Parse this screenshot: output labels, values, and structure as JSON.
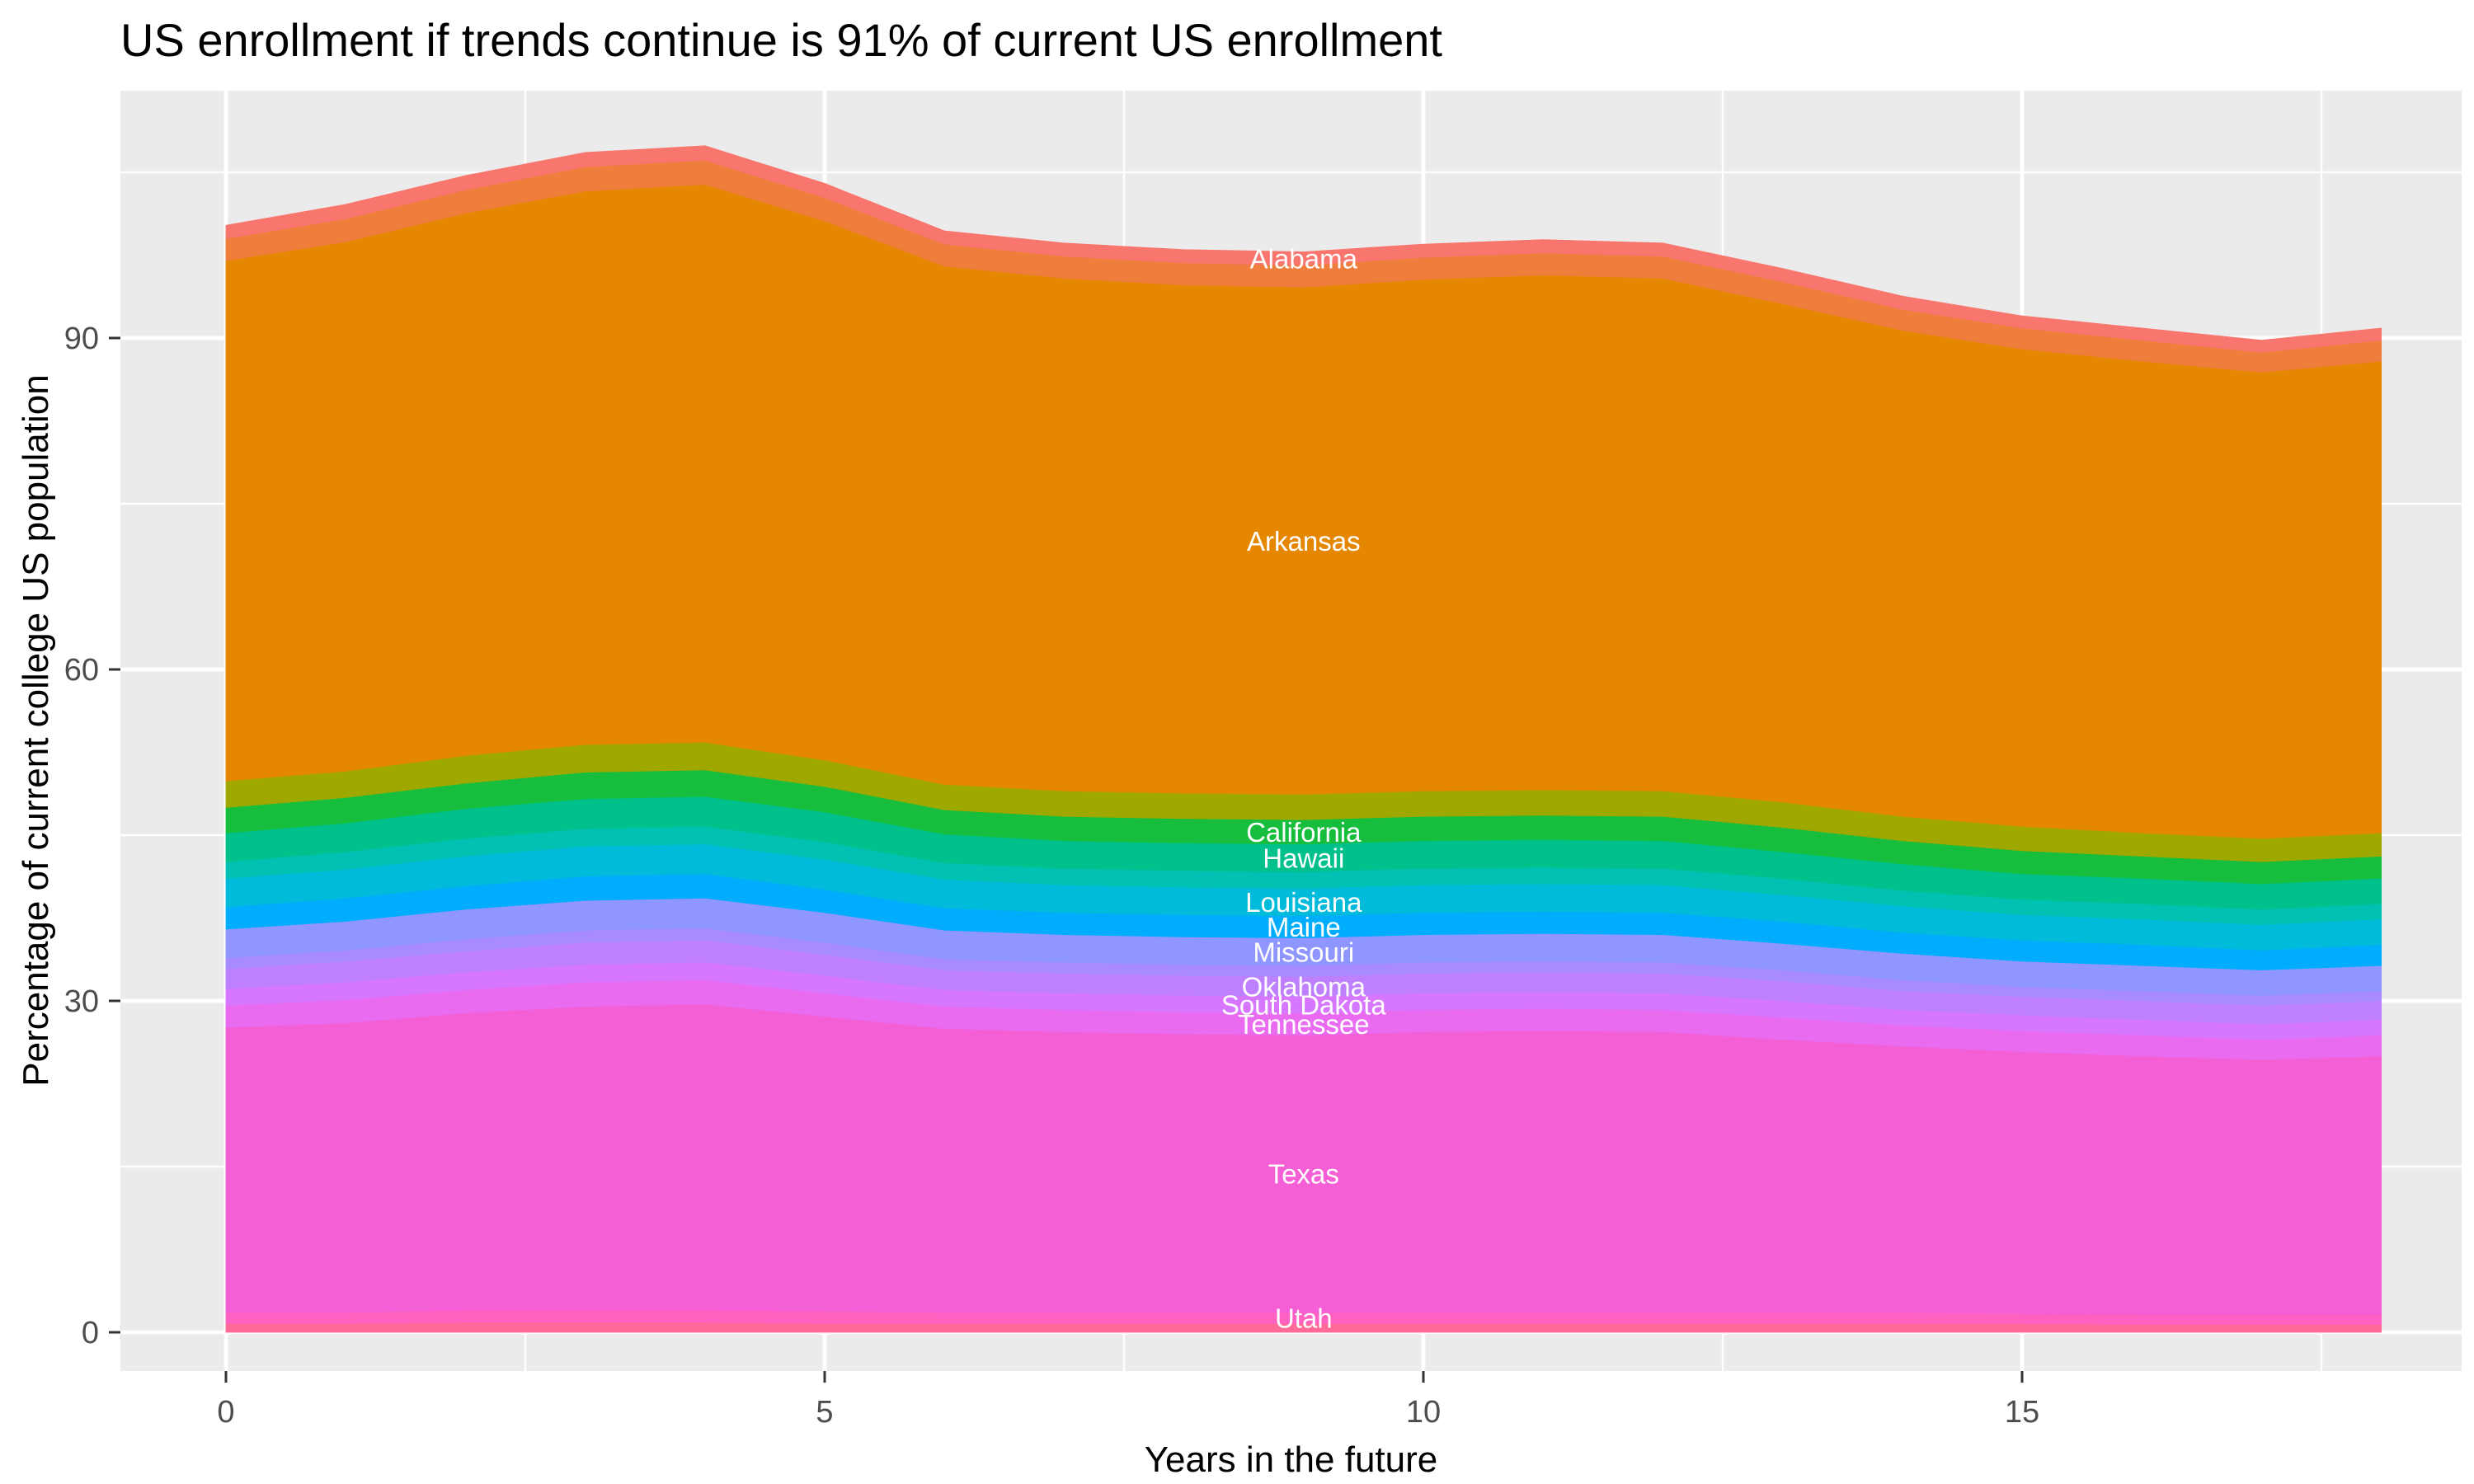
{
  "chart_data": {
    "type": "area",
    "stacked": true,
    "title": "US enrollment if trends continue is 91% of current US enrollment",
    "xlabel": "Years in the future",
    "ylabel": "Percentage of current college US population",
    "x": [
      0,
      1,
      2,
      3,
      4,
      5,
      6,
      7,
      8,
      9,
      10,
      11,
      12,
      13,
      14,
      15,
      16,
      17,
      18
    ],
    "x_ticks": [
      0,
      5,
      10,
      15
    ],
    "x_minor_ticks": [
      2.5,
      7.5,
      12.5,
      17.5
    ],
    "y_ticks": [
      0,
      30,
      60,
      90
    ],
    "y_minor_ticks": [
      15,
      45,
      75,
      105
    ],
    "xlim": [
      -0.9,
      18.7
    ],
    "ylim": [
      -3.5,
      112.4
    ],
    "grid": true,
    "legend": "none",
    "panel_background": "#EBEBEB",
    "grid_color": "#FFFFFF",
    "tick_label_color": "#4D4D4D",
    "area_label_color": "#FFFFFF",
    "label_x": 9,
    "series_order": "bottom-to-top",
    "stack_total_pct": [
      100.3,
      102.0,
      104.5,
      106.8,
      107.6,
      103.9,
      100.0,
      98.8,
      98.0,
      97.8,
      98.6,
      99.3,
      98.8,
      96.0,
      93.8,
      92.0,
      90.9,
      89.9,
      90.9
    ],
    "series": [
      {
        "name": "(other states, bottom band)",
        "labeled": false,
        "color": "#FF6A98",
        "values": [
          0.8,
          0.8,
          0.9,
          0.9,
          0.9,
          0.8,
          0.8,
          0.8,
          0.8,
          0.8,
          0.8,
          0.8,
          0.8,
          0.8,
          0.8,
          0.8,
          0.7,
          0.7,
          0.7
        ]
      },
      {
        "name": "Utah",
        "labeled": true,
        "color": "#FF61C0",
        "values": [
          1.0,
          1.0,
          1.1,
          1.1,
          1.1,
          1.1,
          1.0,
          1.0,
          1.0,
          1.0,
          1.0,
          1.0,
          1.0,
          1.0,
          1.0,
          0.9,
          0.9,
          0.9,
          0.9
        ]
      },
      {
        "name": "Texas",
        "labeled": true,
        "color": "#F45FD5",
        "values": [
          25.8,
          26.2,
          26.9,
          27.5,
          27.7,
          26.7,
          25.7,
          25.4,
          25.2,
          25.1,
          25.4,
          25.5,
          25.4,
          24.7,
          24.1,
          23.7,
          23.4,
          23.1,
          23.4
        ]
      },
      {
        "name": "Tennessee",
        "labeled": true,
        "color": "#E96BF0",
        "values": [
          2.0,
          2.1,
          2.1,
          2.2,
          2.2,
          2.1,
          2.0,
          2.0,
          2.0,
          2.0,
          2.0,
          2.0,
          2.0,
          2.0,
          1.9,
          1.9,
          1.9,
          1.8,
          1.9
        ]
      },
      {
        "name": "South Dakota",
        "labeled": true,
        "color": "#D776FF",
        "values": [
          1.5,
          1.6,
          1.6,
          1.6,
          1.6,
          1.6,
          1.5,
          1.5,
          1.5,
          1.5,
          1.5,
          1.5,
          1.5,
          1.5,
          1.4,
          1.4,
          1.4,
          1.4,
          1.4
        ]
      },
      {
        "name": "Oklahoma",
        "labeled": true,
        "color": "#BF80FF",
        "values": [
          1.8,
          1.9,
          1.9,
          2.0,
          2.0,
          1.9,
          1.8,
          1.8,
          1.8,
          1.8,
          1.8,
          1.8,
          1.8,
          1.8,
          1.7,
          1.7,
          1.7,
          1.7,
          1.7
        ]
      },
      {
        "name": "(other states, purple band)",
        "labeled": false,
        "color": "#A88CFF",
        "values": [
          1.0,
          1.0,
          1.1,
          1.1,
          1.1,
          1.1,
          1.0,
          1.0,
          1.0,
          1.0,
          1.0,
          1.0,
          1.0,
          1.0,
          1.0,
          0.9,
          0.9,
          0.9,
          0.9
        ]
      },
      {
        "name": "Missouri",
        "labeled": true,
        "color": "#8F96FF",
        "values": [
          2.6,
          2.6,
          2.7,
          2.7,
          2.7,
          2.7,
          2.6,
          2.5,
          2.5,
          2.5,
          2.5,
          2.5,
          2.5,
          2.4,
          2.4,
          2.3,
          2.3,
          2.3,
          2.3
        ]
      },
      {
        "name": "Maine",
        "labeled": true,
        "color": "#00ACFC",
        "values": [
          2.0,
          2.1,
          2.1,
          2.2,
          2.2,
          2.1,
          2.0,
          2.0,
          2.0,
          2.0,
          2.0,
          2.0,
          2.0,
          2.0,
          1.9,
          1.9,
          1.9,
          1.8,
          1.9
        ]
      },
      {
        "name": "Louisiana",
        "labeled": true,
        "color": "#00BBDA",
        "values": [
          2.6,
          2.6,
          2.7,
          2.7,
          2.7,
          2.7,
          2.6,
          2.5,
          2.5,
          2.5,
          2.5,
          2.5,
          2.5,
          2.4,
          2.4,
          2.3,
          2.3,
          2.3,
          2.3
        ]
      },
      {
        "name": "(other states, teal band)",
        "labeled": false,
        "color": "#00C1B2",
        "values": [
          1.5,
          1.6,
          1.6,
          1.6,
          1.6,
          1.6,
          1.5,
          1.5,
          1.5,
          1.5,
          1.5,
          1.5,
          1.5,
          1.5,
          1.4,
          1.4,
          1.4,
          1.4,
          1.4
        ]
      },
      {
        "name": "Hawaii",
        "labeled": true,
        "color": "#00C08B",
        "values": [
          2.6,
          2.6,
          2.7,
          2.7,
          2.7,
          2.7,
          2.6,
          2.5,
          2.5,
          2.5,
          2.5,
          2.5,
          2.5,
          2.4,
          2.4,
          2.3,
          2.3,
          2.3,
          2.3
        ]
      },
      {
        "name": "California",
        "labeled": true,
        "color": "#17BE3E",
        "values": [
          2.3,
          2.3,
          2.3,
          2.4,
          2.4,
          2.3,
          2.2,
          2.2,
          2.2,
          2.2,
          2.2,
          2.2,
          2.2,
          2.2,
          2.1,
          2.1,
          2.0,
          2.0,
          2.0
        ]
      },
      {
        "name": "(other states, olive band)",
        "labeled": false,
        "color": "#9FA800",
        "values": [
          2.4,
          2.4,
          2.5,
          2.5,
          2.5,
          2.4,
          2.3,
          2.3,
          2.3,
          2.3,
          2.3,
          2.3,
          2.3,
          2.3,
          2.2,
          2.2,
          2.1,
          2.1,
          2.1
        ]
      },
      {
        "name": "Arkansas",
        "labeled": true,
        "color": "#E58700",
        "values": [
          47.1,
          47.9,
          49.1,
          50.1,
          50.5,
          48.8,
          46.9,
          46.4,
          46.0,
          45.9,
          46.3,
          46.6,
          46.4,
          45.1,
          44.0,
          43.2,
          42.7,
          42.2,
          42.7
        ]
      },
      {
        "name": "(other states, top band)",
        "labeled": false,
        "color": "#EF7D3B",
        "values": [
          2.0,
          2.1,
          2.1,
          2.2,
          2.2,
          2.1,
          2.0,
          2.0,
          2.0,
          2.0,
          2.0,
          2.0,
          2.0,
          2.0,
          1.9,
          1.9,
          1.9,
          1.8,
          1.9
        ]
      },
      {
        "name": "Alabama",
        "labeled": true,
        "color": "#F8766D",
        "values": [
          1.2,
          1.3,
          1.3,
          1.3,
          1.3,
          1.3,
          1.2,
          1.2,
          1.2,
          1.2,
          1.2,
          1.2,
          1.2,
          1.2,
          1.2,
          1.1,
          1.1,
          1.1,
          1.1
        ]
      }
    ]
  }
}
